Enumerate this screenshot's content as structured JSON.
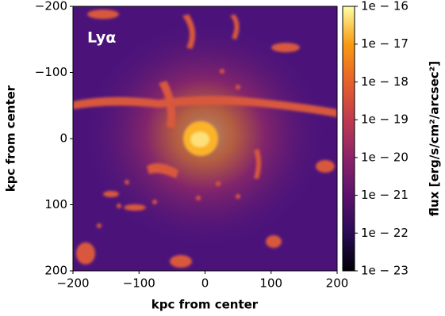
{
  "chart_data": {
    "type": "image",
    "annotation": "Lyα",
    "xlabel": "kpc from center",
    "ylabel": "kpc from center",
    "xlim": [
      -200,
      200
    ],
    "ylim": [
      -200,
      200
    ],
    "y_inverted": true,
    "xticks": [
      {
        "value": -200,
        "label": "−200"
      },
      {
        "value": -100,
        "label": "−100"
      },
      0,
      100,
      200
    ],
    "yticks": [
      {
        "value": -200,
        "label": "−200"
      },
      {
        "value": -100,
        "label": "−100"
      },
      0,
      100,
      200
    ],
    "colorbar": {
      "label": "flux [erg/s/cm²/arcsec²]",
      "log": true,
      "lim": [
        1e-23,
        1e-16
      ],
      "ticks": [
        {
          "value": 1e-16,
          "label": "1e − 16"
        },
        {
          "value": 1e-17,
          "label": "1e − 17"
        },
        {
          "value": 1e-18,
          "label": "1e − 18"
        },
        {
          "value": 1e-19,
          "label": "1e − 19"
        },
        {
          "value": 1e-20,
          "label": "1e − 20"
        },
        {
          "value": 1e-21,
          "label": "1e − 21"
        },
        {
          "value": 1e-22,
          "label": "1e − 22"
        },
        {
          "value": 1e-23,
          "label": "1e − 23"
        }
      ],
      "colors": [
        "#000004",
        "#2a0b57",
        "#5c126e",
        "#8d2369",
        "#c03a50",
        "#e8602b",
        "#f99a10",
        "#fcffa4"
      ]
    }
  }
}
